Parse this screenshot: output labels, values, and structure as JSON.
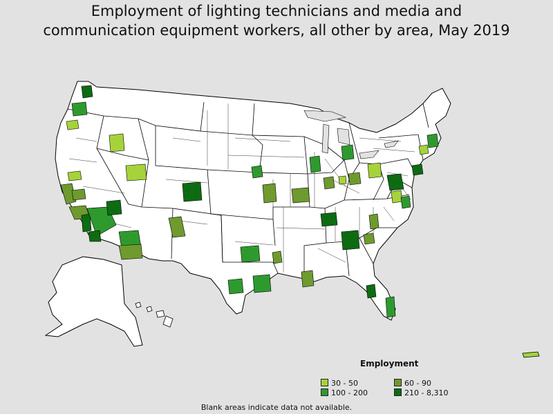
{
  "title": {
    "line1": "Employment of lighting technicians and media and",
    "line2": "communication equipment workers, all other by area, May 2019"
  },
  "legend": {
    "title": "Employment",
    "items": [
      {
        "label": "30 - 50",
        "color": "#a6d33a"
      },
      {
        "label": "60 - 90",
        "color": "#6e9a2e"
      },
      {
        "label": "100 - 200",
        "color": "#2e9a2e"
      },
      {
        "label": "210 - 8,310",
        "color": "#0d6b12"
      }
    ]
  },
  "footnote": "Blank areas indicate data not available.",
  "map_colors": {
    "background": "#e2e2e2",
    "land": "#ffffff",
    "border": "#000000"
  }
}
